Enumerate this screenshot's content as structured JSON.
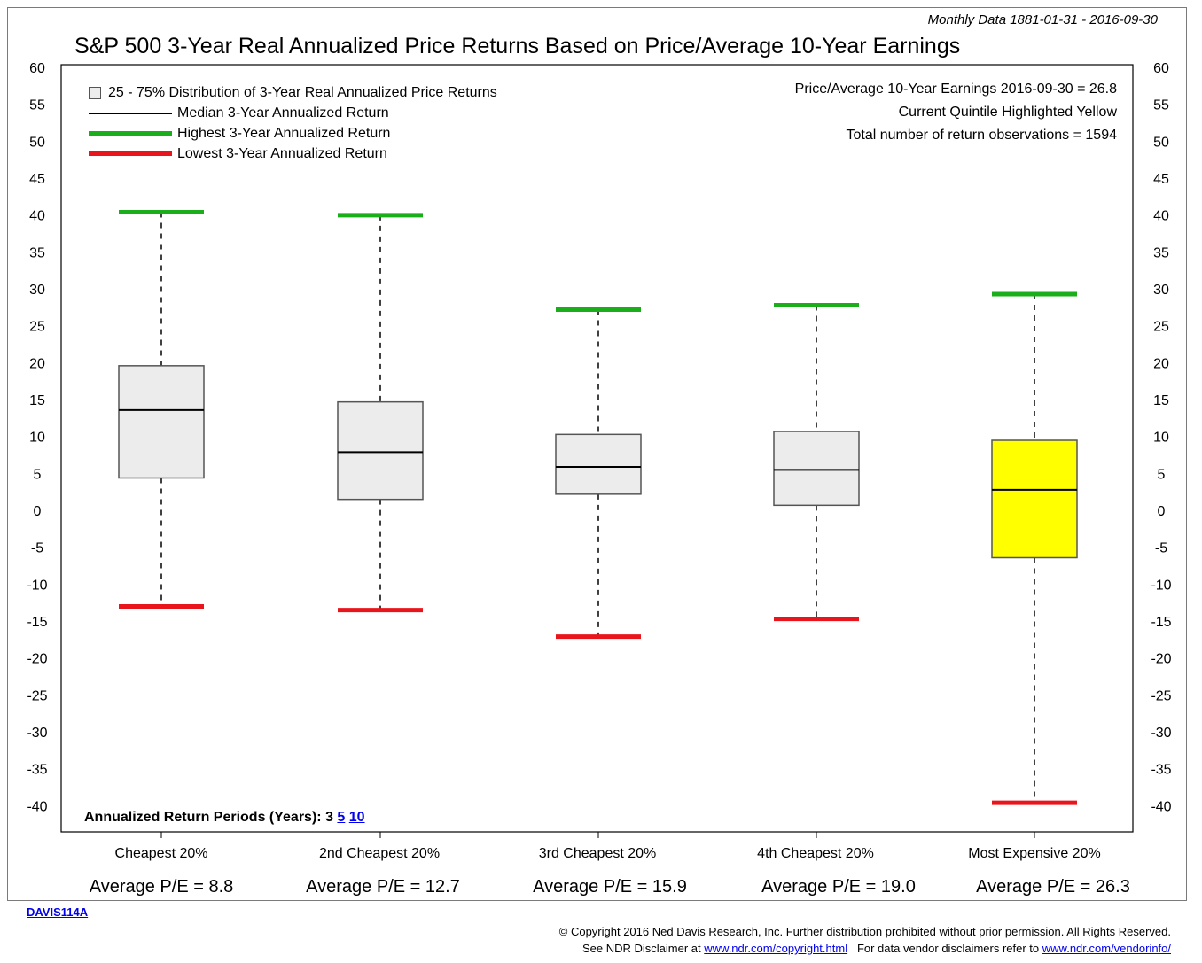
{
  "header": {
    "subtitle": "Monthly Data 1881-01-31 - 2016-09-30",
    "title": "S&P 500 3-Year Real Annualized Price Returns Based on Price/Average 10-Year Earnings"
  },
  "legend": {
    "box": "25 - 75% Distribution of 3-Year Real Annualized Price Returns",
    "median": "Median 3-Year Annualized Return",
    "highest": "Highest 3-Year Annualized Return",
    "lowest": "Lowest 3-Year Annualized Return"
  },
  "info": {
    "line1": "Price/Average 10-Year Earnings 2016-09-30 = 26.8",
    "line2": "Current Quintile Highlighted Yellow",
    "line3": "Total number of return observations = 1594"
  },
  "periods": {
    "label": "Annualized Return Periods (Years):",
    "current": "3",
    "link_5": "5",
    "link_10": "10"
  },
  "footer": {
    "code": "DAVIS114A",
    "copyright": "© Copyright 2016 Ned Davis Research, Inc. Further distribution prohibited without prior permission. All Rights Reserved.",
    "disclaimer_prefix": "See NDR Disclaimer at",
    "disclaimer_link": "www.ndr.com/copyright.html",
    "vendor_prefix": "For data vendor disclaimers refer to",
    "vendor_link": "www.ndr.com/vendorinfo/"
  },
  "colors": {
    "box_fill": "#ececec",
    "highlight_fill": "#ffff00",
    "highest": "#1aae1a",
    "lowest": "#e8161c",
    "median": "#000000"
  },
  "chart_data": {
    "type": "boxplot",
    "ylim": [
      -45,
      60
    ],
    "yticks": [
      60,
      55,
      50,
      45,
      40,
      35,
      30,
      25,
      20,
      15,
      10,
      5,
      0,
      -5,
      -10,
      -15,
      -20,
      -25,
      -30,
      -35,
      -40
    ],
    "y_axis_both_sides": true,
    "grid": false,
    "categories": [
      "Cheapest 20%",
      "2nd Cheapest 20%",
      "3rd Cheapest 20%",
      "4th Cheapest 20%",
      "Most Expensive 20%"
    ],
    "average_pe_labels": [
      "Average P/E = 8.8",
      "Average P/E = 12.7",
      "Average P/E = 15.9",
      "Average P/E = 19.0",
      "Average P/E = 26.3"
    ],
    "highlighted_index": 4,
    "boxes": [
      {
        "q1": 4.5,
        "median": 13.7,
        "q3": 19.7,
        "high": 40.5,
        "low": -12.9
      },
      {
        "q1": 1.6,
        "median": 8.0,
        "q3": 14.8,
        "high": 40.1,
        "low": -13.4
      },
      {
        "q1": 2.3,
        "median": 6.0,
        "q3": 10.4,
        "high": 27.3,
        "low": -17.0
      },
      {
        "q1": 0.8,
        "median": 5.6,
        "q3": 10.8,
        "high": 27.9,
        "low": -14.6
      },
      {
        "q1": -6.3,
        "median": 2.9,
        "q3": 9.6,
        "high": 29.4,
        "low": -39.5
      }
    ]
  }
}
